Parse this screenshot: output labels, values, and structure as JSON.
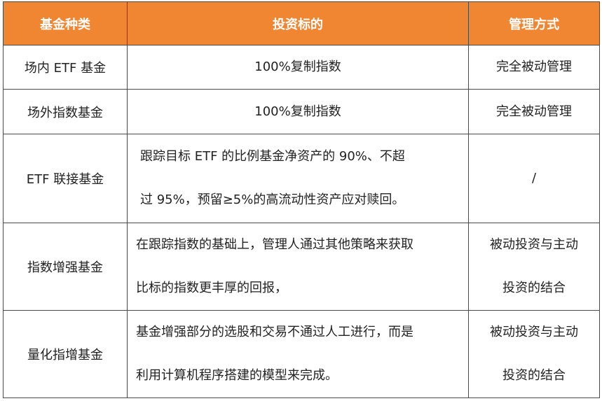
{
  "header": {
    "col1": "基金种类",
    "col2": "投资标的",
    "col3": "管理方式"
  },
  "rows": [
    {
      "type": "场内 ETF 基金",
      "target_lines": [
        "100%复制指数"
      ],
      "mgmt_lines": [
        "完全被动管理"
      ]
    },
    {
      "type": "场外指数基金",
      "target_lines": [
        "100%复制指数"
      ],
      "mgmt_lines": [
        "完全被动管理"
      ]
    },
    {
      "type": "ETF 联接基金",
      "target_lines": [
        "跟踪目标 ETF 的比例基金净资产的 90%、不超",
        "过 95%，预留≥5%的高流动性资产应对赎回。"
      ],
      "mgmt_lines": [
        "/"
      ]
    },
    {
      "type": "指数增强基金",
      "target_lines": [
        "在跟踪指数的基础上，管理人通过其他策略来获取",
        "比标的指数更丰厚的回报，"
      ],
      "mgmt_lines": [
        "被动投资与主动",
        "投资的结合"
      ]
    },
    {
      "type": "量化指增基金",
      "target_lines": [
        "基金增强部分的选股和交易不通过人工进行，而是",
        "利用计算机程序搭建的模型来完成。"
      ],
      "mgmt_lines": [
        "被动投资与主动",
        "投资的结合"
      ]
    }
  ],
  "colors": {
    "header_bg": "#f08632",
    "header_text": "#ffffff",
    "border": "#4a4a4a"
  }
}
